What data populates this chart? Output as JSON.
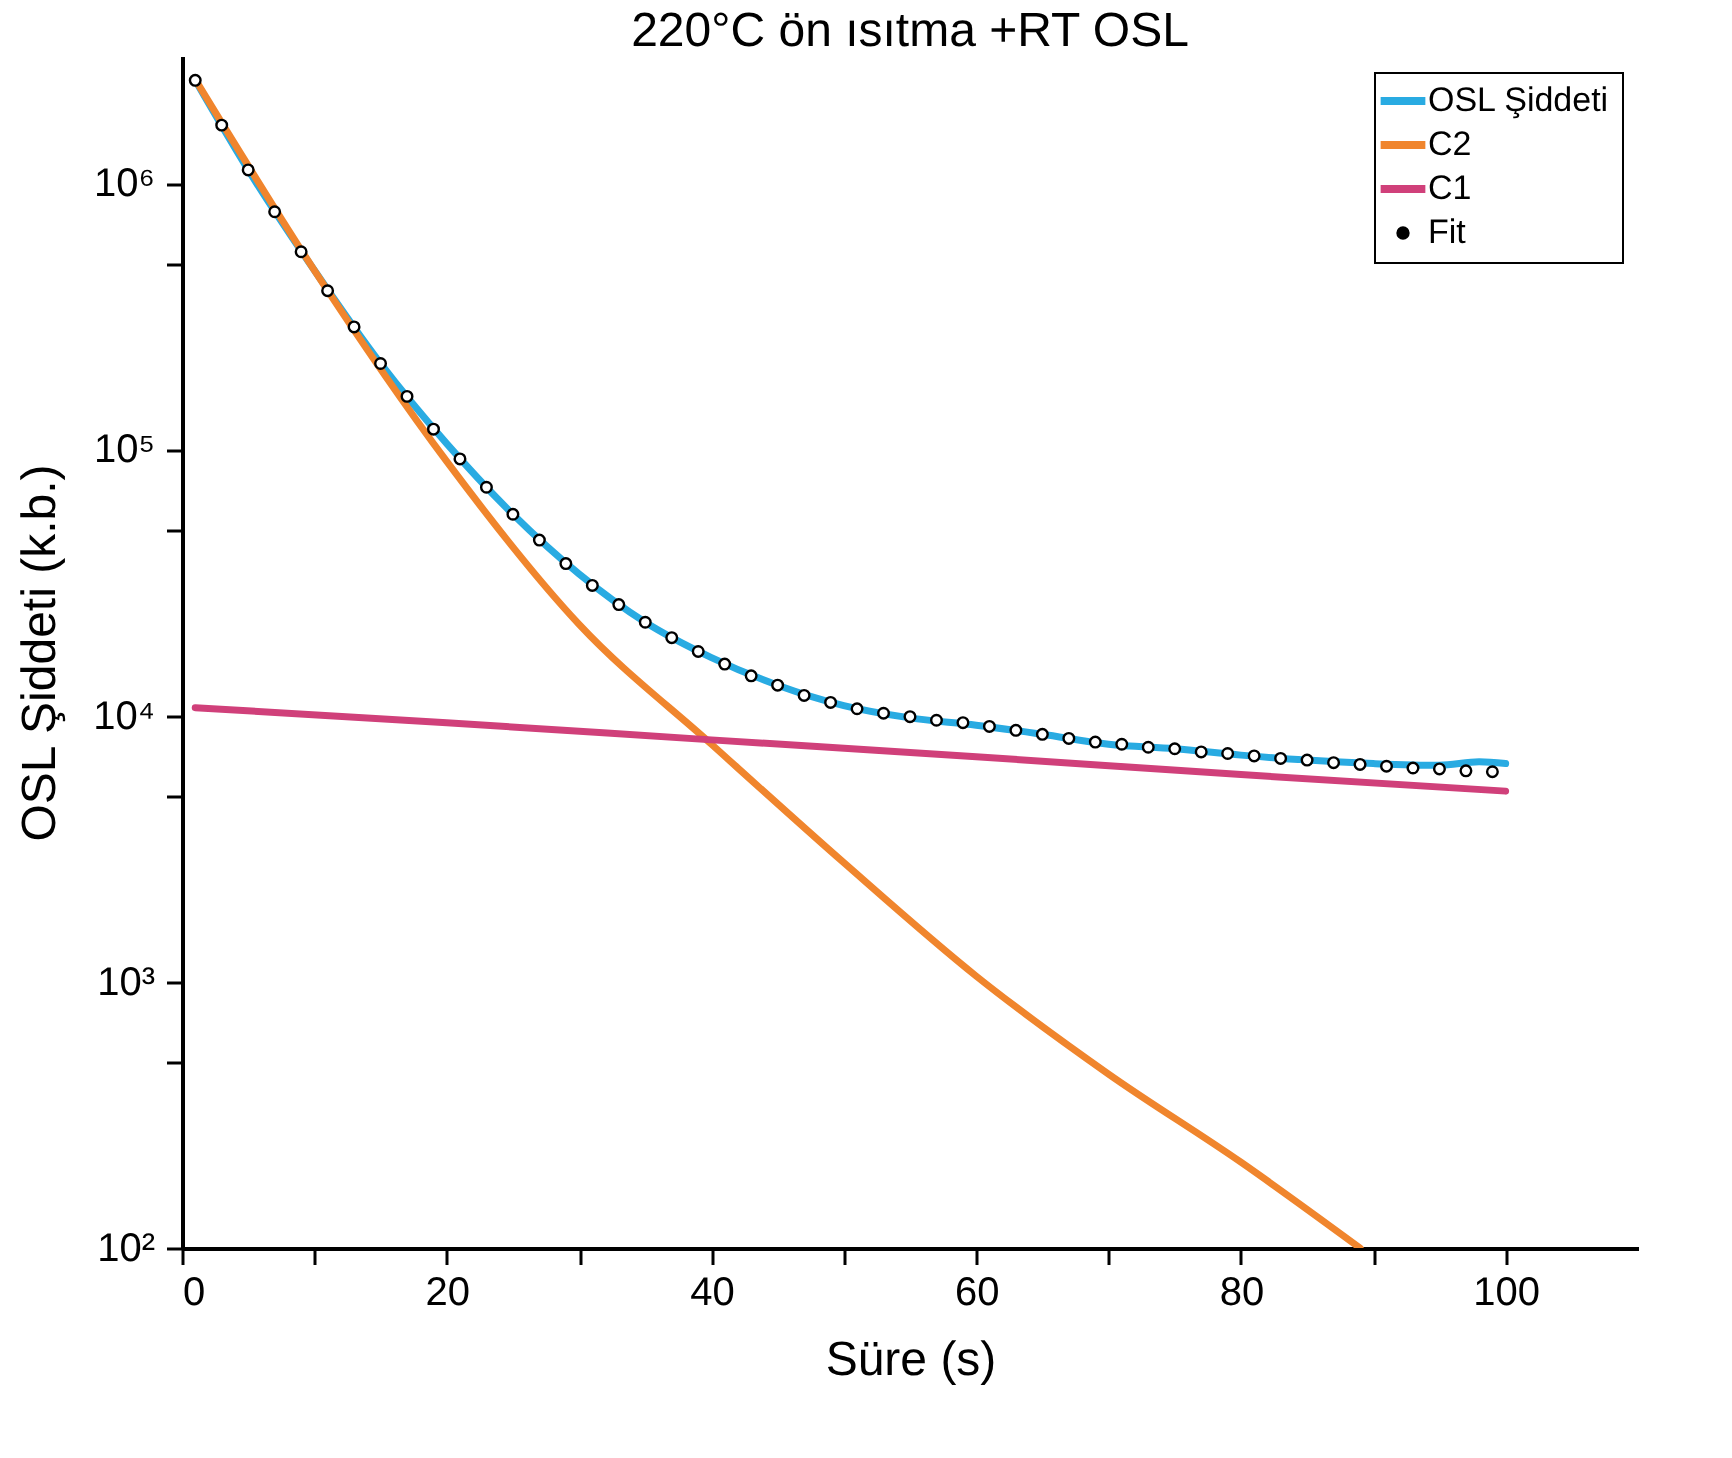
{
  "chart_data": {
    "type": "line",
    "title": "220°C ön ısıtma +RT OSL",
    "xlabel": "Süre (s)",
    "ylabel": "OSL Şiddeti (k.b.)",
    "log": "y",
    "xlim": [
      0,
      110
    ],
    "ylim": [
      100,
      3000000
    ],
    "xticks": [
      0,
      {
        "value": 10,
        "label": null
      },
      20,
      {
        "value": 30,
        "label": null
      },
      40,
      {
        "value": 50,
        "label": null
      },
      60,
      {
        "value": 70,
        "label": null
      },
      80,
      {
        "value": 90,
        "label": null
      },
      100
    ],
    "yticks": [
      {
        "value": 100,
        "label": "10²"
      },
      {
        "value": 500,
        "label": null
      },
      {
        "value": 1000,
        "label": "10³"
      },
      {
        "value": 5000,
        "label": null
      },
      {
        "value": 10000,
        "label": "10⁴"
      },
      {
        "value": 50000,
        "label": null
      },
      {
        "value": 100000,
        "label": "10⁵"
      },
      {
        "value": 500000,
        "label": null
      },
      {
        "value": 1000000,
        "label": "10⁶"
      }
    ],
    "legend": "top right",
    "line_style": "solid",
    "series": [
      {
        "name": "OSL Şiddeti",
        "color": "#29abe2",
        "x": [
          1,
          5,
          10,
          15,
          20,
          25,
          30,
          35,
          40,
          45,
          50,
          55,
          60,
          65,
          70,
          75,
          80,
          85,
          90,
          95,
          98,
          100
        ],
        "values": [
          2430000,
          1120000,
          470000,
          210000,
          105000,
          57000,
          34000,
          22400,
          16500,
          13000,
          10900,
          9800,
          9200,
          8500,
          7800,
          7500,
          7100,
          6800,
          6600,
          6500,
          6700,
          6600
        ]
      },
      {
        "name": "C2",
        "color": "#f0852d",
        "x": [
          1,
          10,
          20,
          30,
          40,
          50,
          60,
          70,
          80,
          89
        ],
        "values": [
          2450000,
          470000,
          90000,
          22000,
          7800,
          2800,
          1050,
          450,
          210,
          100
        ]
      },
      {
        "name": "C1",
        "color": "#d0407a",
        "x": [
          1,
          20,
          40,
          60,
          80,
          100
        ],
        "values": [
          10700,
          9400,
          8100,
          7000,
          6000,
          5200
        ]
      },
      {
        "name": "Fit",
        "type": "scatter",
        "marker": "circle",
        "color": "#000000",
        "x": [
          1,
          3,
          5,
          7,
          9,
          11,
          13,
          15,
          17,
          19,
          21,
          23,
          25,
          27,
          29,
          31,
          33,
          35,
          37,
          39,
          41,
          43,
          45,
          47,
          49,
          51,
          53,
          55,
          57,
          59,
          61,
          63,
          65,
          67,
          69,
          71,
          73,
          75,
          77,
          79,
          81,
          83,
          85,
          87,
          89,
          91,
          93,
          95,
          97,
          99
        ],
        "values": [
          2430000,
          1650000,
          1120000,
          780000,
          552000,
          394000,
          288000,
          210000,
          158000,
          119000,
          92000,
          72000,
          57000,
          45600,
          37200,
          30800,
          26100,
          22400,
          19600,
          17400,
          15600,
          14100,
          13000,
          11900,
          11200,
          10600,
          10200,
          9900,
          9600,
          9400,
          9100,
          8800,
          8500,
          8200,
          7950,
          7800,
          7600,
          7500,
          7300,
          7200,
          7050,
          6900,
          6800,
          6650,
          6550,
          6450,
          6350,
          6300,
          6200,
          6150
        ]
      }
    ]
  }
}
